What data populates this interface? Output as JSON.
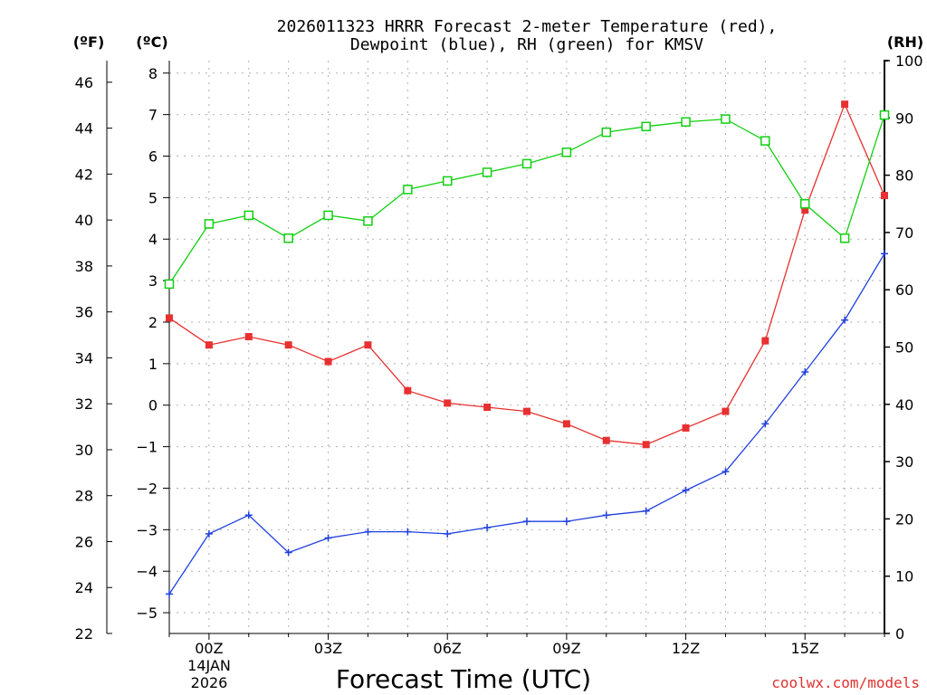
{
  "chart_data": {
    "type": "line",
    "title_line1": "2026011323 HRRR Forecast 2-meter Temperature (red),",
    "title_line2": "Dewpoint (blue), RH (green) for KMSV",
    "xlabel": "Forecast Time (UTC)",
    "unit_labels": {
      "fahrenheit": "(ºF)",
      "celsius": "(ºC)",
      "rh": "(RH)"
    },
    "x_tick_labels": [
      "00Z",
      "03Z",
      "06Z",
      "09Z",
      "12Z",
      "15Z"
    ],
    "x_tick_hours": [
      0,
      3,
      6,
      9,
      12,
      15
    ],
    "date_label_line1": "14JAN",
    "date_label_line2": "2026",
    "xlim_hours": [
      -1,
      17
    ],
    "celsius_axis": {
      "ylim": [
        -5.5,
        8.3
      ],
      "ticks": [
        -5,
        -4,
        -3,
        -2,
        -1,
        0,
        1,
        2,
        3,
        4,
        5,
        6,
        7,
        8
      ]
    },
    "fahrenheit_axis": {
      "ylim": [
        22,
        46.94
      ],
      "ticks": [
        22,
        24,
        26,
        28,
        30,
        32,
        34,
        36,
        38,
        40,
        42,
        44,
        46
      ]
    },
    "rh_axis": {
      "ylim": [
        0,
        100
      ],
      "ticks": [
        0,
        10,
        20,
        30,
        40,
        50,
        60,
        70,
        80,
        90,
        100
      ]
    },
    "x_hours": [
      -1,
      0,
      1,
      2,
      3,
      4,
      5,
      6,
      7,
      8,
      9,
      10,
      11,
      12,
      13,
      14,
      15,
      16,
      17
    ],
    "series": [
      {
        "name": "2-meter Temperature",
        "axis": "celsius",
        "color": "#e83030",
        "marker": "filled-square",
        "values": [
          2.1,
          1.45,
          1.65,
          1.45,
          1.05,
          1.45,
          0.35,
          0.05,
          -0.05,
          -0.15,
          -0.45,
          -0.85,
          -0.95,
          -0.55,
          -0.15,
          1.55,
          4.7,
          7.25,
          5.05
        ]
      },
      {
        "name": "Dewpoint",
        "axis": "celsius",
        "color": "#2040e0",
        "marker": "plus",
        "values": [
          -4.55,
          -3.1,
          -2.65,
          -3.55,
          -3.2,
          -3.05,
          -3.05,
          -3.1,
          -2.95,
          -2.8,
          -2.8,
          -2.65,
          -2.55,
          -2.05,
          -1.6,
          -0.45,
          0.8,
          2.05,
          3.65
        ]
      },
      {
        "name": "Relative Humidity",
        "axis": "rh",
        "color": "#10d010",
        "marker": "open-square",
        "values": [
          61,
          71.5,
          73,
          69,
          73,
          72,
          77.5,
          79,
          80.5,
          82,
          84,
          87.5,
          88.5,
          89.3,
          89.8,
          86,
          75,
          69,
          90.5
        ]
      }
    ],
    "credit": "coolwx.com/models"
  }
}
